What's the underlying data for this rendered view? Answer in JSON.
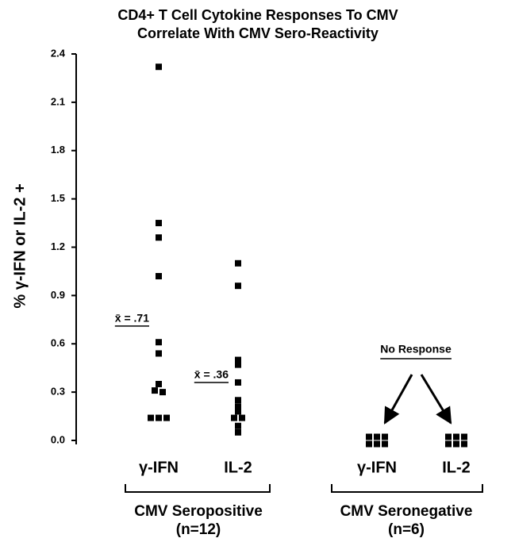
{
  "chart_data": {
    "type": "dot",
    "title": [
      "CD4+ T Cell Cytokine Responses To CMV",
      "Correlate With CMV Sero-Reactivity"
    ],
    "ylabel": "% γ-IFN or IL-2 +",
    "ylim": [
      0,
      2.4
    ],
    "yticks": [
      {
        "value": 0,
        "label": "0.0"
      },
      0.3,
      0.6,
      0.9,
      1.2,
      1.5,
      1.8,
      2.1,
      2.4
    ],
    "color": "#000000",
    "groups": [
      {
        "name": "CMV Seropositive",
        "n": "(n=12)",
        "series": [
          {
            "name": "γ-IFN",
            "values": [
              2.32,
              1.35,
              1.26,
              1.02,
              0.61,
              0.54,
              0.35,
              0.31,
              0.3,
              0.14,
              0.14,
              0.14
            ],
            "mean": {
              "label": "x̄ = .71",
              "value": 0.71
            }
          },
          {
            "name": "IL-2",
            "values": [
              1.1,
              0.96,
              0.5,
              0.47,
              0.36,
              0.25,
              0.21,
              0.18,
              0.14,
              0.14,
              0.09,
              0.05
            ],
            "mean": {
              "label": "x̄ = .36",
              "value": 0.36
            }
          }
        ]
      },
      {
        "name": "CMV Seronegative",
        "n": "(n=6)",
        "annotation": "No Response",
        "series": [
          {
            "name": "γ-IFN",
            "values": [
              0,
              0,
              0,
              0,
              0,
              0
            ]
          },
          {
            "name": "IL-2",
            "values": [
              0,
              0,
              0,
              0,
              0,
              0
            ]
          }
        ]
      }
    ]
  }
}
